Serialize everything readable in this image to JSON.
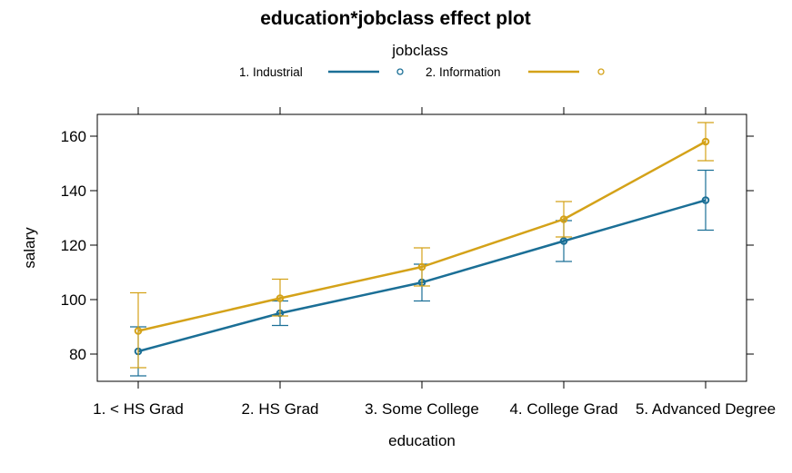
{
  "chart_data": {
    "type": "line",
    "title": "education*jobclass effect plot",
    "xlabel": "education",
    "ylabel": "salary",
    "categories": [
      "1. < HS Grad",
      "2. HS Grad",
      "3. Some College",
      "4. College Grad",
      "5. Advanced Degree"
    ],
    "ylim": [
      70,
      168
    ],
    "yticks": [
      80,
      100,
      120,
      140,
      160
    ],
    "legend": {
      "title": "jobclass",
      "placement": "top"
    },
    "series": [
      {
        "name": "1. Industrial",
        "color": "#1b6f96",
        "values": [
          81.0,
          95.0,
          106.3,
          121.5,
          136.5
        ],
        "lower": [
          72.0,
          90.5,
          99.5,
          114.0,
          125.5
        ],
        "upper": [
          90.0,
          99.5,
          113.0,
          129.0,
          147.5
        ]
      },
      {
        "name": "2. Information",
        "color": "#d4a219",
        "values": [
          88.5,
          100.5,
          112.0,
          129.5,
          158.0
        ],
        "lower": [
          75.0,
          94.0,
          105.0,
          123.0,
          151.0
        ],
        "upper": [
          102.5,
          107.5,
          119.0,
          136.0,
          165.0
        ]
      }
    ]
  }
}
